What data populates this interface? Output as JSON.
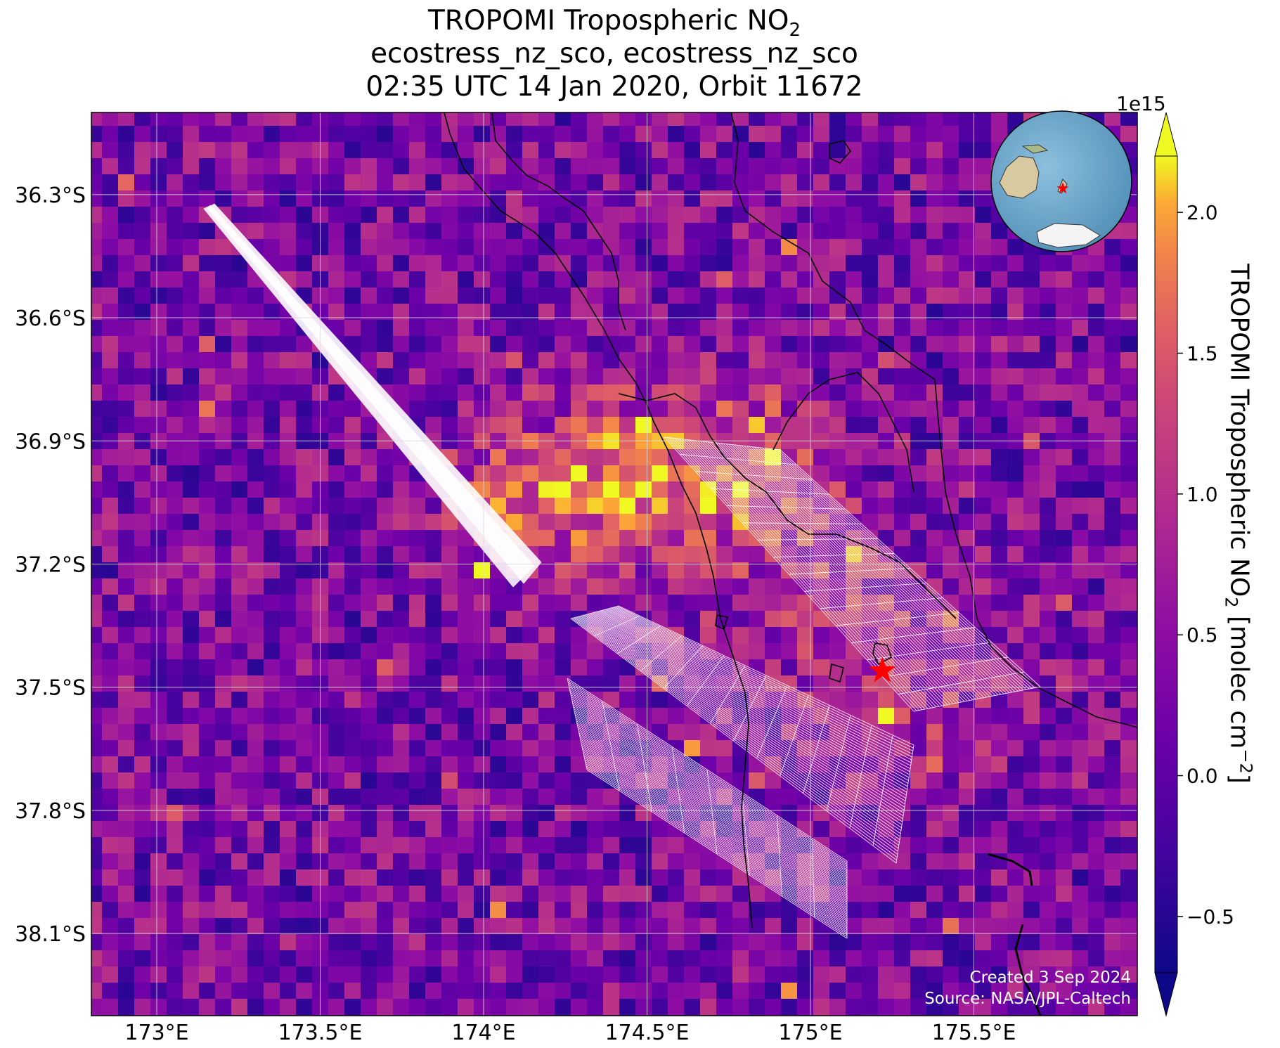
{
  "title": {
    "line1_main": "TROPOMI Tropospheric NO",
    "line1_sub": "2",
    "line2": "ecostress_nz_sco, ecostress_nz_sco",
    "line3": "02:35 UTC 14 Jan 2020, Orbit 11672"
  },
  "map": {
    "lon_ticks": [
      "173°E",
      "173.5°E",
      "174°E",
      "174.5°E",
      "175°E",
      "175.5°E"
    ],
    "lon_values": [
      173.0,
      173.5,
      174.0,
      174.5,
      175.0,
      175.5
    ],
    "lat_ticks": [
      "36.3°S",
      "36.6°S",
      "36.9°S",
      "37.2°S",
      "37.5°S",
      "37.8°S",
      "38.1°S"
    ],
    "lat_values": [
      -36.3,
      -36.6,
      -36.9,
      -37.2,
      -37.5,
      -37.8,
      -38.1
    ],
    "lon_range": [
      172.8,
      176.0
    ],
    "lat_range": [
      -38.3,
      -36.1
    ],
    "gridlines": true,
    "colormap": "plasma",
    "target_marker": {
      "lon": 175.22,
      "lat": -37.46,
      "color": "#ff0000",
      "symbol": "star"
    },
    "swath_outline_color": "#ffffff",
    "coastline_color": "#000000"
  },
  "colorbar": {
    "label_main": "TROPOMI Tropospheric NO",
    "label_sub": "2",
    "label_unit_pre": " [molec cm",
    "label_unit_sup": "−2",
    "label_unit_post": "]",
    "scale_label": "1e15",
    "ticks": [
      "−0.5",
      "0.0",
      "0.5",
      "1.0",
      "1.5",
      "2.0"
    ],
    "tick_values": [
      -0.5,
      0.0,
      0.5,
      1.0,
      1.5,
      2.0
    ],
    "range": [
      -0.7,
      2.2
    ],
    "extend": "both"
  },
  "inset_globe": {
    "ocean_color": "#6ea6c9",
    "land_color": "#d8c9a0",
    "ice_color": "#f4f4f4",
    "marker_color": "#ff0000"
  },
  "footer": {
    "created": "Created 3 Sep 2024",
    "source": "Source: NASA/JPL-Caltech"
  }
}
